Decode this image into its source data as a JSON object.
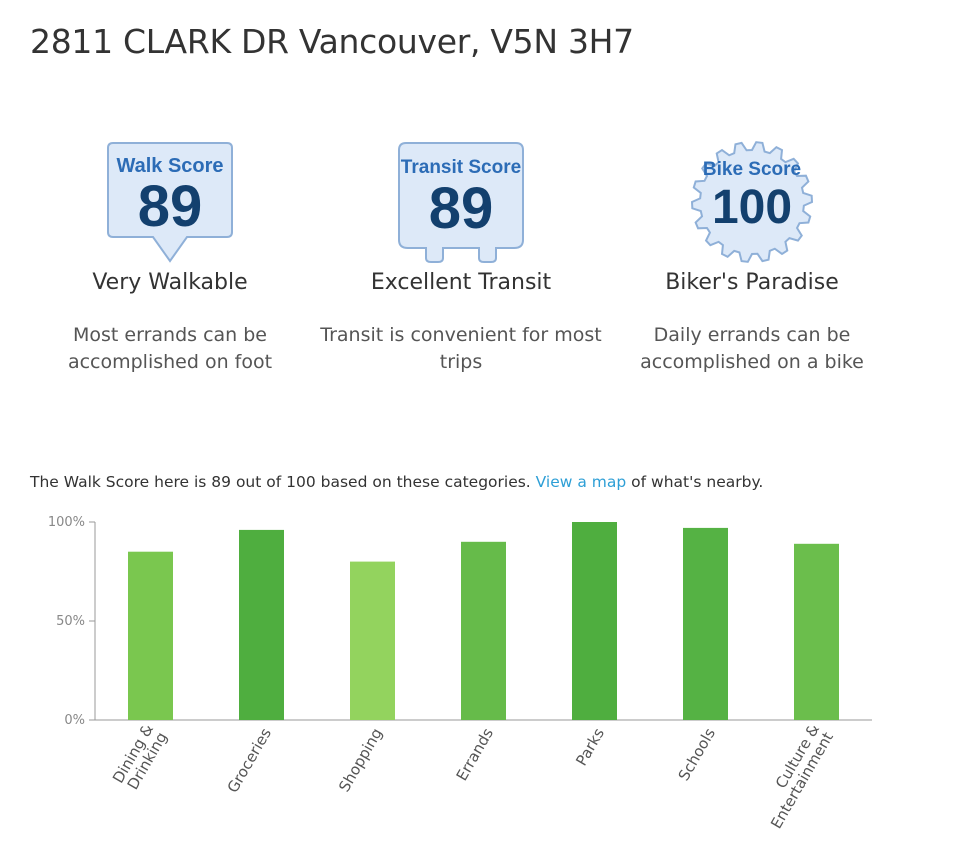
{
  "address": "2811 CLARK DR Vancouver, V5N 3H7",
  "scores": {
    "walk": {
      "badge_label": "Walk Score",
      "value": "89",
      "title": "Very Walkable",
      "desc": [
        "Most errands can be",
        "accomplished on foot"
      ]
    },
    "transit": {
      "badge_label": "Transit Score",
      "value": "89",
      "title": "Excellent Transit",
      "desc": [
        "Transit is convenient for most",
        "trips"
      ]
    },
    "bike": {
      "badge_label": "Bike Score",
      "value": "100",
      "title": "Biker's Paradise",
      "desc": [
        "Daily errands can be",
        "accomplished on a bike"
      ]
    }
  },
  "summary": {
    "before": "The Walk Score here is 89 out of 100 based on these categories. ",
    "link": "View a map",
    "after": " of what's nearby."
  },
  "colors": {
    "badge_fill": "#dde9f8",
    "badge_stroke": "#8fb0d8",
    "badge_text": "#13406e",
    "badge_label": "#2c6cb6",
    "link": "#2e9fd6",
    "bar_colors": [
      "#7ac74f",
      "#4fae3f",
      "#93d35e",
      "#66bb4a",
      "#4fae3f",
      "#55b244",
      "#6bbe4c"
    ]
  },
  "chart_data": {
    "type": "bar",
    "categories": [
      [
        "Dining &",
        "Drinking"
      ],
      [
        "Groceries"
      ],
      [
        "Shopping"
      ],
      [
        "Errands"
      ],
      [
        "Parks"
      ],
      [
        "Schools"
      ],
      [
        "Culture &",
        "Entertainment"
      ]
    ],
    "values": [
      85,
      96,
      80,
      90,
      100,
      97,
      89
    ],
    "ylim": [
      0,
      100
    ],
    "yticks": [
      {
        "value": 100,
        "label": "100%"
      },
      {
        "value": 50,
        "label": "50%"
      },
      {
        "value": 0,
        "label": "0%"
      }
    ],
    "grid": false,
    "legend": "none"
  }
}
